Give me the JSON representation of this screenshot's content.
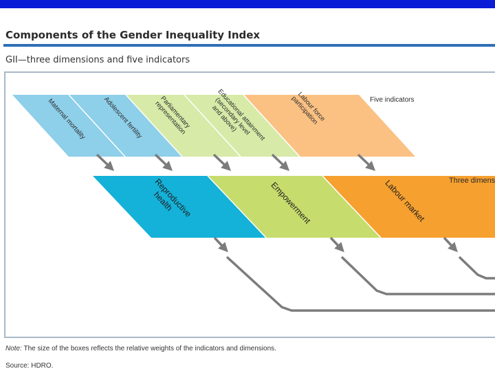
{
  "header": {
    "title": "Components of the Gender Inequality Index",
    "subtitle": "GII—three dimensions and five indicators"
  },
  "diagram": {
    "indicators_label": "Five indicators",
    "dimensions_label": "Three dimensio",
    "indicators": [
      {
        "lines": [
          "Maternal mortality"
        ],
        "color": "#8ecfe9"
      },
      {
        "lines": [
          "Adolescent fertility"
        ],
        "color": "#8ecfe9"
      },
      {
        "lines": [
          "Parliamentary",
          "representation"
        ],
        "color": "#d7eaa8"
      },
      {
        "lines": [
          "Educational attainment",
          "(secondary level",
          "and above)"
        ],
        "color": "#d7eaa8"
      },
      {
        "lines": [
          "Labour force",
          "participation"
        ],
        "color": "#fbc183"
      }
    ],
    "dimensions": [
      {
        "lines": [
          "Reproductive",
          "health"
        ],
        "color": "#14b1d8"
      },
      {
        "lines": [
          "Empowerment"
        ],
        "color": "#c6dc6c"
      },
      {
        "lines": [
          "Labour market"
        ],
        "color": "#f6a02f"
      }
    ],
    "arrow_color": "#7c7c7c"
  },
  "footer": {
    "note_label": "Note:",
    "note_text": " The size of the boxes reflects the relative weights of the indicators and dimensions.",
    "source": "Source: HDRO."
  }
}
